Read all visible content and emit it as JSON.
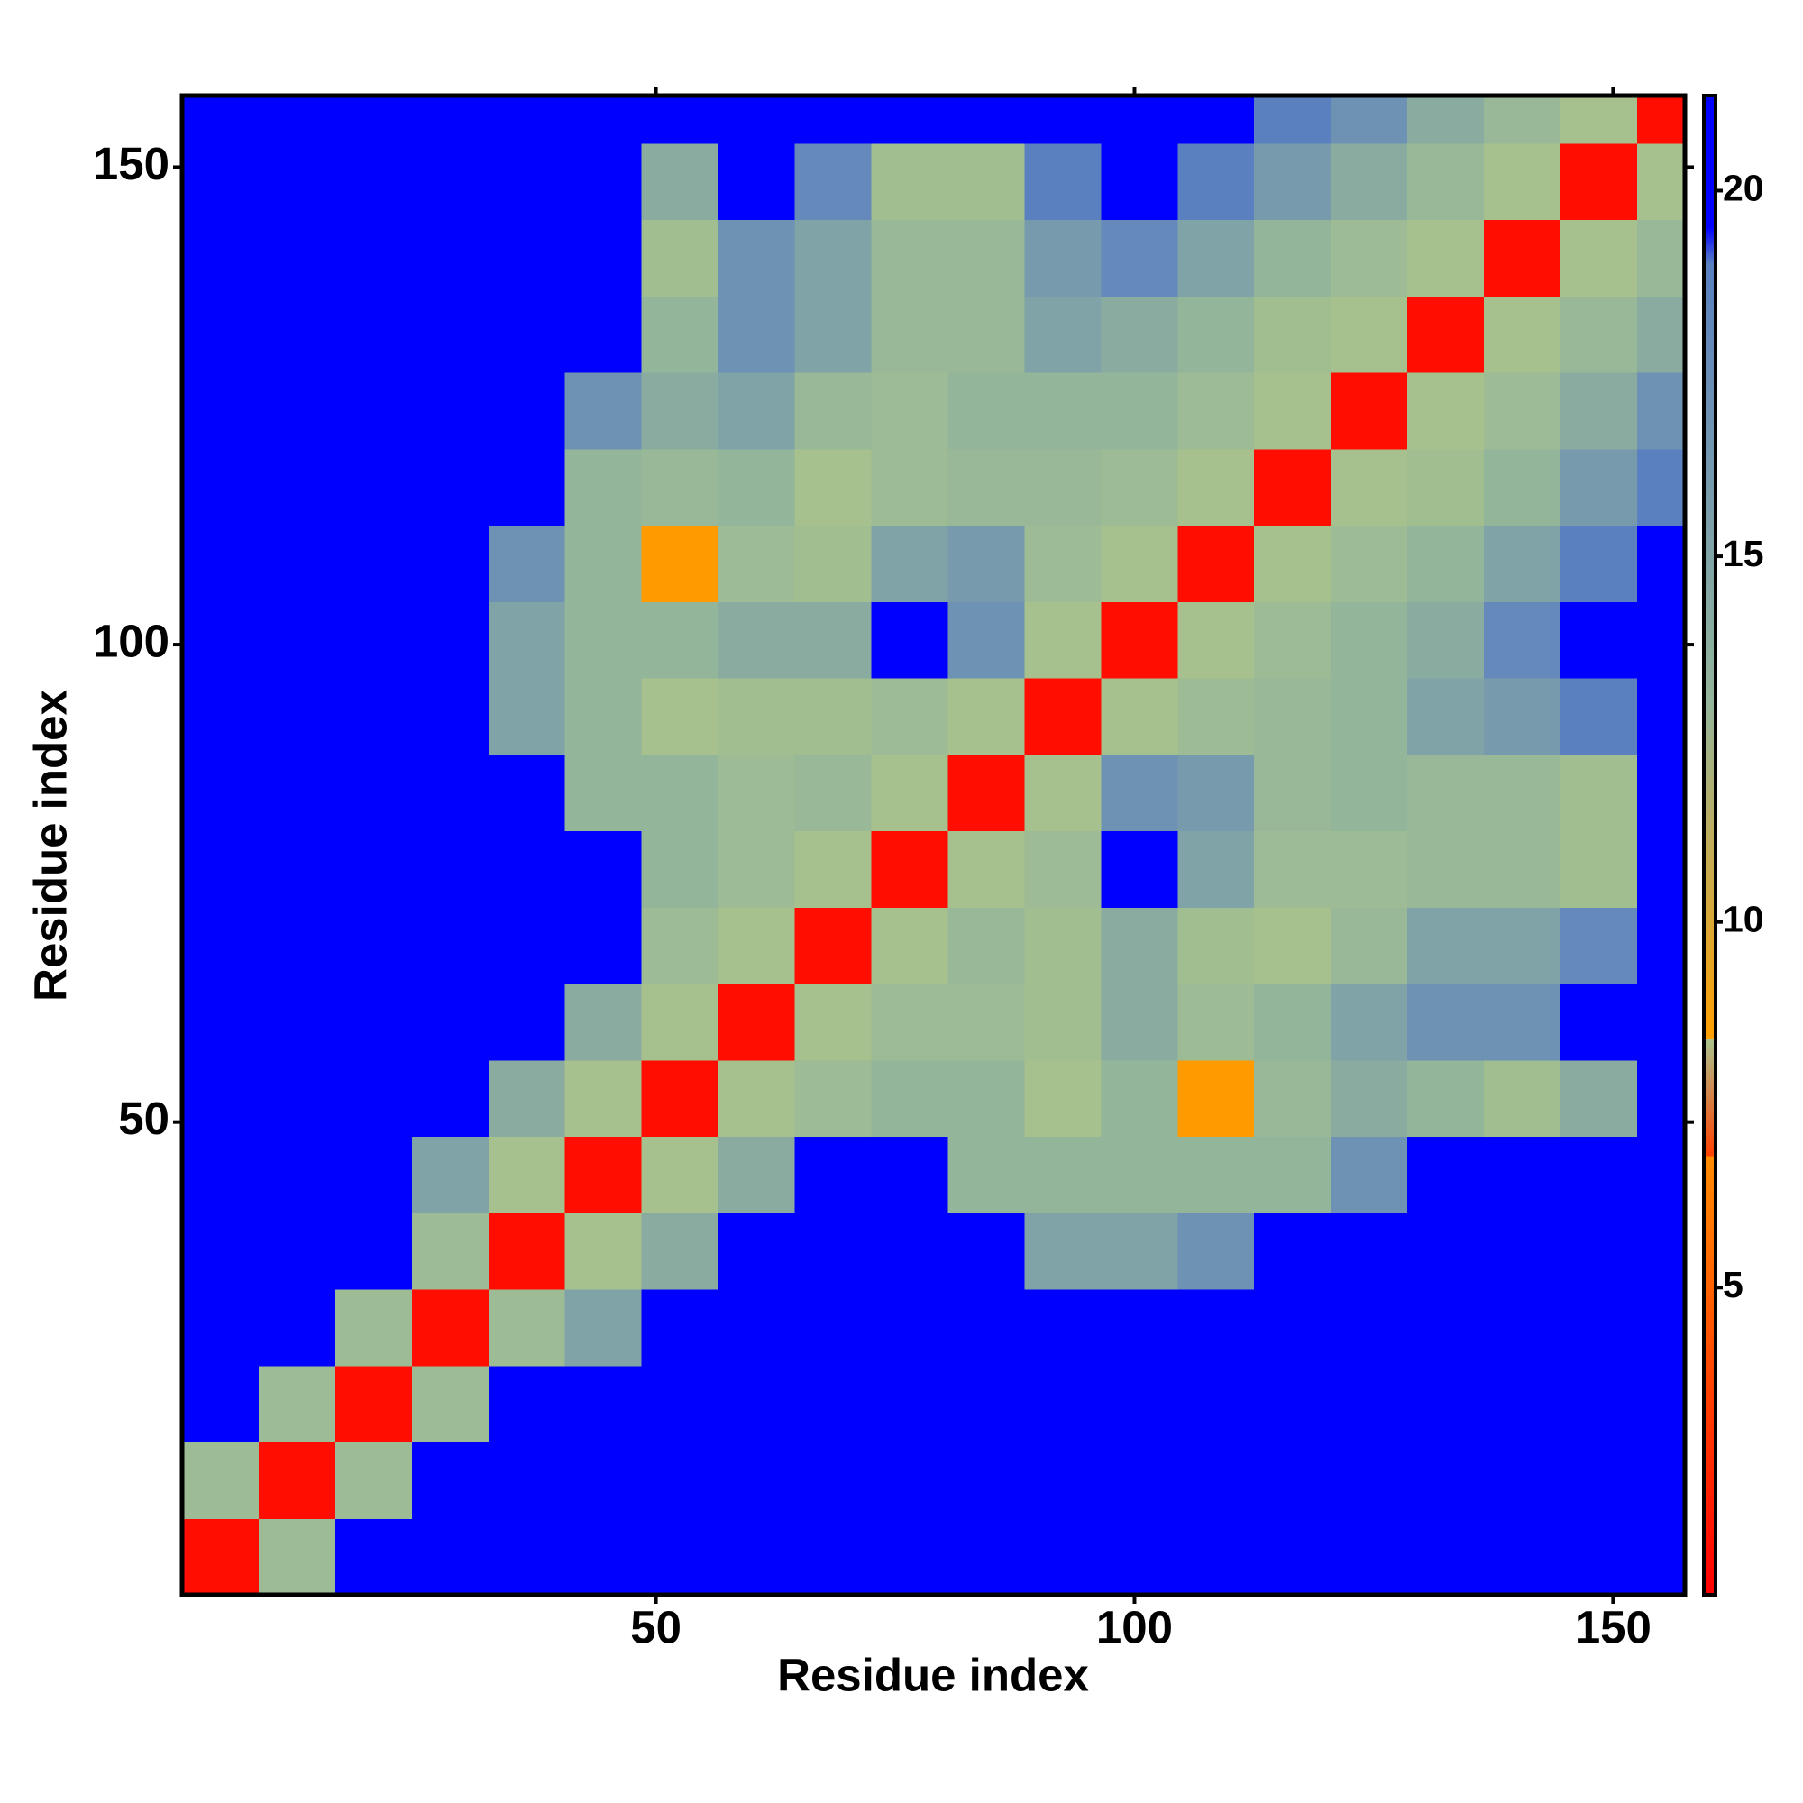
{
  "chart_data": {
    "type": "heatmap",
    "xlabel": "Residue index",
    "ylabel": "Residue index",
    "bins": [
      0.5,
      8.5,
      16.5,
      24.5,
      32.5,
      40.5,
      48.5,
      56.5,
      64.5,
      72.5,
      80.5,
      88.5,
      96.5,
      104.5,
      112.5,
      120.5,
      128.5,
      136.5,
      144.5,
      152.5,
      157.5
    ],
    "xlim": [
      0.5,
      157.5
    ],
    "ylim": [
      0.5,
      157.5
    ],
    "xticks": [
      50,
      100,
      150
    ],
    "yticks": [
      50,
      100,
      150
    ],
    "zlim": [
      0.8,
      21.3
    ],
    "zticks": [
      5,
      10,
      15,
      20
    ],
    "colorscale": [
      [
        0.8,
        "#ff0000"
      ],
      [
        6.8,
        "#ff4000"
      ],
      [
        6.8,
        "#ff8c00"
      ],
      [
        8.4,
        "#ffa000"
      ],
      [
        8.4,
        "#a9c38c"
      ],
      [
        13,
        "#93b59a"
      ],
      [
        19,
        "#5a80c0"
      ],
      [
        19.5,
        "#0000ff"
      ],
      [
        21.3,
        "#0000ff"
      ]
    ],
    "z": [
      [
        2,
        11,
        21,
        21,
        21,
        21,
        21,
        21,
        21,
        21,
        21,
        21,
        21,
        21,
        21,
        21,
        21,
        21,
        21,
        21
      ],
      [
        11,
        2,
        11,
        21,
        21,
        21,
        21,
        21,
        21,
        21,
        21,
        21,
        21,
        21,
        21,
        21,
        21,
        21,
        21,
        21
      ],
      [
        21,
        11,
        2,
        11,
        21,
        21,
        21,
        21,
        21,
        21,
        21,
        21,
        21,
        21,
        21,
        21,
        21,
        21,
        21,
        21
      ],
      [
        21,
        21,
        11,
        2,
        11,
        15,
        21,
        21,
        21,
        21,
        21,
        21,
        21,
        21,
        21,
        21,
        21,
        21,
        21,
        21
      ],
      [
        21,
        21,
        21,
        11,
        2,
        9,
        14,
        21,
        21,
        21,
        21,
        15,
        15,
        17,
        21,
        21,
        21,
        21,
        21,
        21
      ],
      [
        21,
        21,
        21,
        15,
        9,
        2,
        9,
        14,
        21,
        21,
        13,
        13,
        13,
        13,
        13,
        17,
        21,
        21,
        21,
        21
      ],
      [
        21,
        21,
        21,
        21,
        14,
        9,
        2,
        9,
        11,
        13,
        13,
        9,
        13,
        8,
        12,
        14,
        13,
        10,
        14,
        21
      ],
      [
        21,
        21,
        21,
        21,
        21,
        14,
        9,
        2,
        9,
        11,
        11,
        10,
        14,
        11,
        13,
        15,
        17,
        17,
        21,
        21
      ],
      [
        21,
        21,
        21,
        21,
        21,
        21,
        11,
        9,
        2,
        9,
        12,
        10,
        14,
        10,
        9,
        12,
        15,
        15,
        18,
        21
      ],
      [
        21,
        21,
        21,
        21,
        21,
        21,
        13,
        11,
        9,
        2,
        9,
        11,
        21,
        15,
        11,
        11,
        12,
        12,
        10,
        21
      ],
      [
        21,
        21,
        21,
        21,
        21,
        13,
        13,
        11,
        12,
        9,
        2,
        9,
        17,
        16,
        12,
        13,
        12,
        12,
        10,
        21
      ],
      [
        21,
        21,
        21,
        21,
        15,
        13,
        9,
        10,
        10,
        11,
        9,
        2,
        9,
        11,
        12,
        13,
        15,
        16,
        19,
        21
      ],
      [
        21,
        21,
        21,
        21,
        15,
        13,
        13,
        14,
        14,
        21,
        17,
        9,
        2,
        9,
        11,
        13,
        14,
        18,
        21,
        21
      ],
      [
        21,
        21,
        21,
        21,
        17,
        13,
        8,
        11,
        10,
        15,
        16,
        11,
        9,
        2,
        9,
        11,
        13,
        15,
        19,
        21
      ],
      [
        21,
        21,
        21,
        21,
        21,
        13,
        12,
        13,
        9,
        11,
        12,
        12,
        11,
        9,
        2,
        9,
        10,
        13,
        16,
        19
      ],
      [
        21,
        21,
        21,
        21,
        21,
        17,
        14,
        15,
        12,
        11,
        13,
        13,
        13,
        11,
        9,
        2,
        9,
        11,
        14,
        17
      ],
      [
        21,
        21,
        21,
        21,
        21,
        21,
        13,
        17,
        15,
        12,
        12,
        15,
        14,
        13,
        10,
        9,
        2,
        9,
        12,
        14
      ],
      [
        21,
        21,
        21,
        21,
        21,
        21,
        10,
        17,
        15,
        12,
        12,
        16,
        18,
        15,
        13,
        11,
        9,
        2,
        9,
        12
      ],
      [
        21,
        21,
        21,
        21,
        21,
        21,
        14,
        21,
        18,
        10,
        10,
        19,
        21,
        19,
        16,
        14,
        12,
        9,
        2,
        9
      ],
      [
        21,
        21,
        21,
        21,
        21,
        21,
        21,
        21,
        21,
        21,
        21,
        21,
        21,
        21,
        19,
        17,
        14,
        12,
        9,
        2
      ]
    ]
  }
}
